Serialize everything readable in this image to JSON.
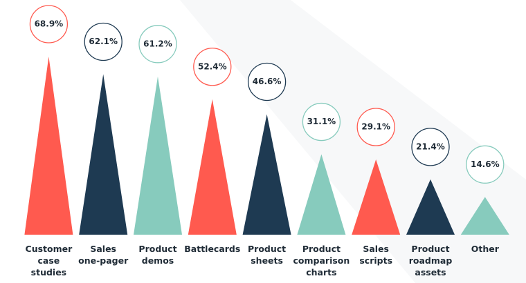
{
  "chart_data": {
    "type": "triangle-bar",
    "categories": [
      "Customer\ncase\nstudies",
      "Sales\none-pager",
      "Product\ndemos",
      "Battlecards",
      "Product\nsheets",
      "Product\ncomparison\ncharts",
      "Sales\nscripts",
      "Product\nroadmap\nassets",
      "Other"
    ],
    "values": [
      68.9,
      62.1,
      61.2,
      52.4,
      46.6,
      31.1,
      29.1,
      21.4,
      14.6
    ],
    "value_labels": [
      "68.9%",
      "62.1%",
      "61.2%",
      "52.4%",
      "46.6%",
      "31.1%",
      "29.1%",
      "21.4%",
      "14.6%"
    ],
    "colors": [
      "#ff5a4f",
      "#1e3a52",
      "#87cbbd",
      "#ff5a4f",
      "#1e3a52",
      "#87cbbd",
      "#ff5a4f",
      "#1e3a52",
      "#87cbbd"
    ]
  }
}
